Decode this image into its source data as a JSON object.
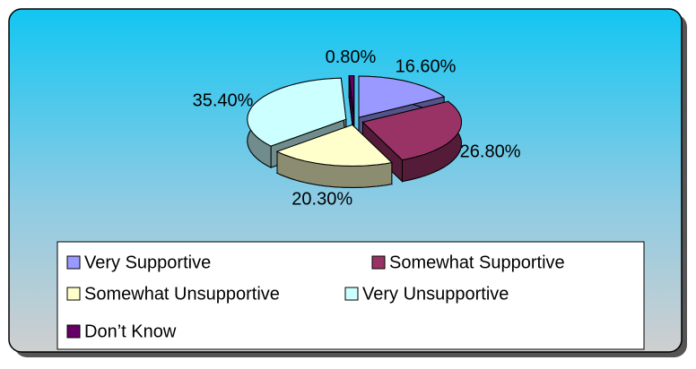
{
  "chart_data": {
    "type": "pie3d",
    "categories": [
      "Very Supportive",
      "Somewhat Supportive",
      "Somewhat Unsupportive",
      "Very Unsupportive",
      "Don’t Know"
    ],
    "values": [
      16.6,
      26.8,
      20.3,
      35.4,
      0.8
    ],
    "value_labels": [
      "16.60%",
      "26.80%",
      "20.30%",
      "35.40%",
      "0.80%"
    ],
    "colors": [
      "#9999ff",
      "#993366",
      "#ffffcc",
      "#ccffff",
      "#660066"
    ],
    "legend": "bottom"
  }
}
